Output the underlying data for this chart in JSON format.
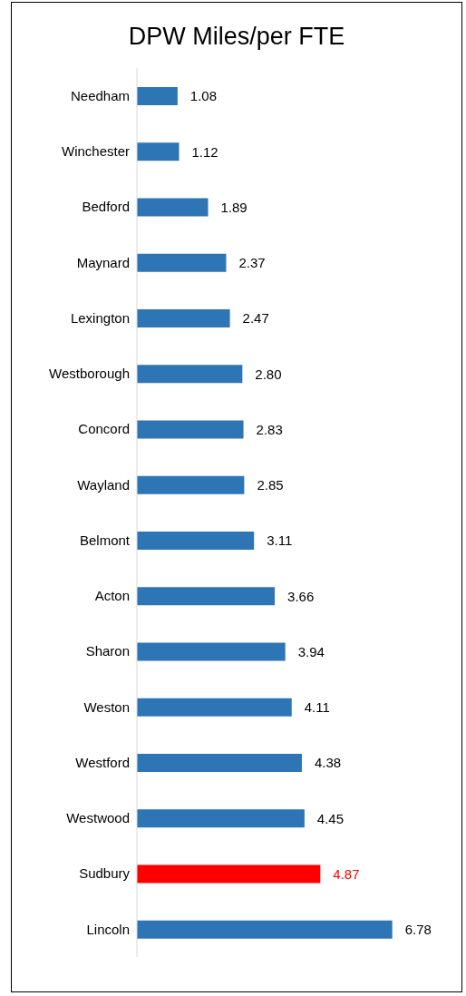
{
  "chart_data": {
    "type": "bar",
    "orientation": "horizontal",
    "title": "DPW Miles/per FTE",
    "categories": [
      "Needham",
      "Winchester",
      "Bedford",
      "Maynard",
      "Lexington",
      "Westborough",
      "Concord",
      "Wayland",
      "Belmont",
      "Acton",
      "Sharon",
      "Weston",
      "Westford",
      "Westwood",
      "Sudbury",
      "Lincoln"
    ],
    "values": [
      1.08,
      1.12,
      1.89,
      2.37,
      2.47,
      2.8,
      2.83,
      2.85,
      3.11,
      3.66,
      3.94,
      4.11,
      4.38,
      4.45,
      4.87,
      6.78
    ],
    "value_labels": [
      "1.08",
      "1.12",
      "1.89",
      "2.37",
      "2.47",
      "2.80",
      "2.83",
      "2.85",
      "3.11",
      "3.66",
      "3.94",
      "4.11",
      "4.38",
      "4.45",
      "4.87",
      "6.78"
    ],
    "colors": [
      "#2e75b6",
      "#2e75b6",
      "#2e75b6",
      "#2e75b6",
      "#2e75b6",
      "#2e75b6",
      "#2e75b6",
      "#2e75b6",
      "#2e75b6",
      "#2e75b6",
      "#2e75b6",
      "#2e75b6",
      "#2e75b6",
      "#2e75b6",
      "#ff0000",
      "#2e75b6"
    ],
    "grid": false,
    "legend": false
  }
}
